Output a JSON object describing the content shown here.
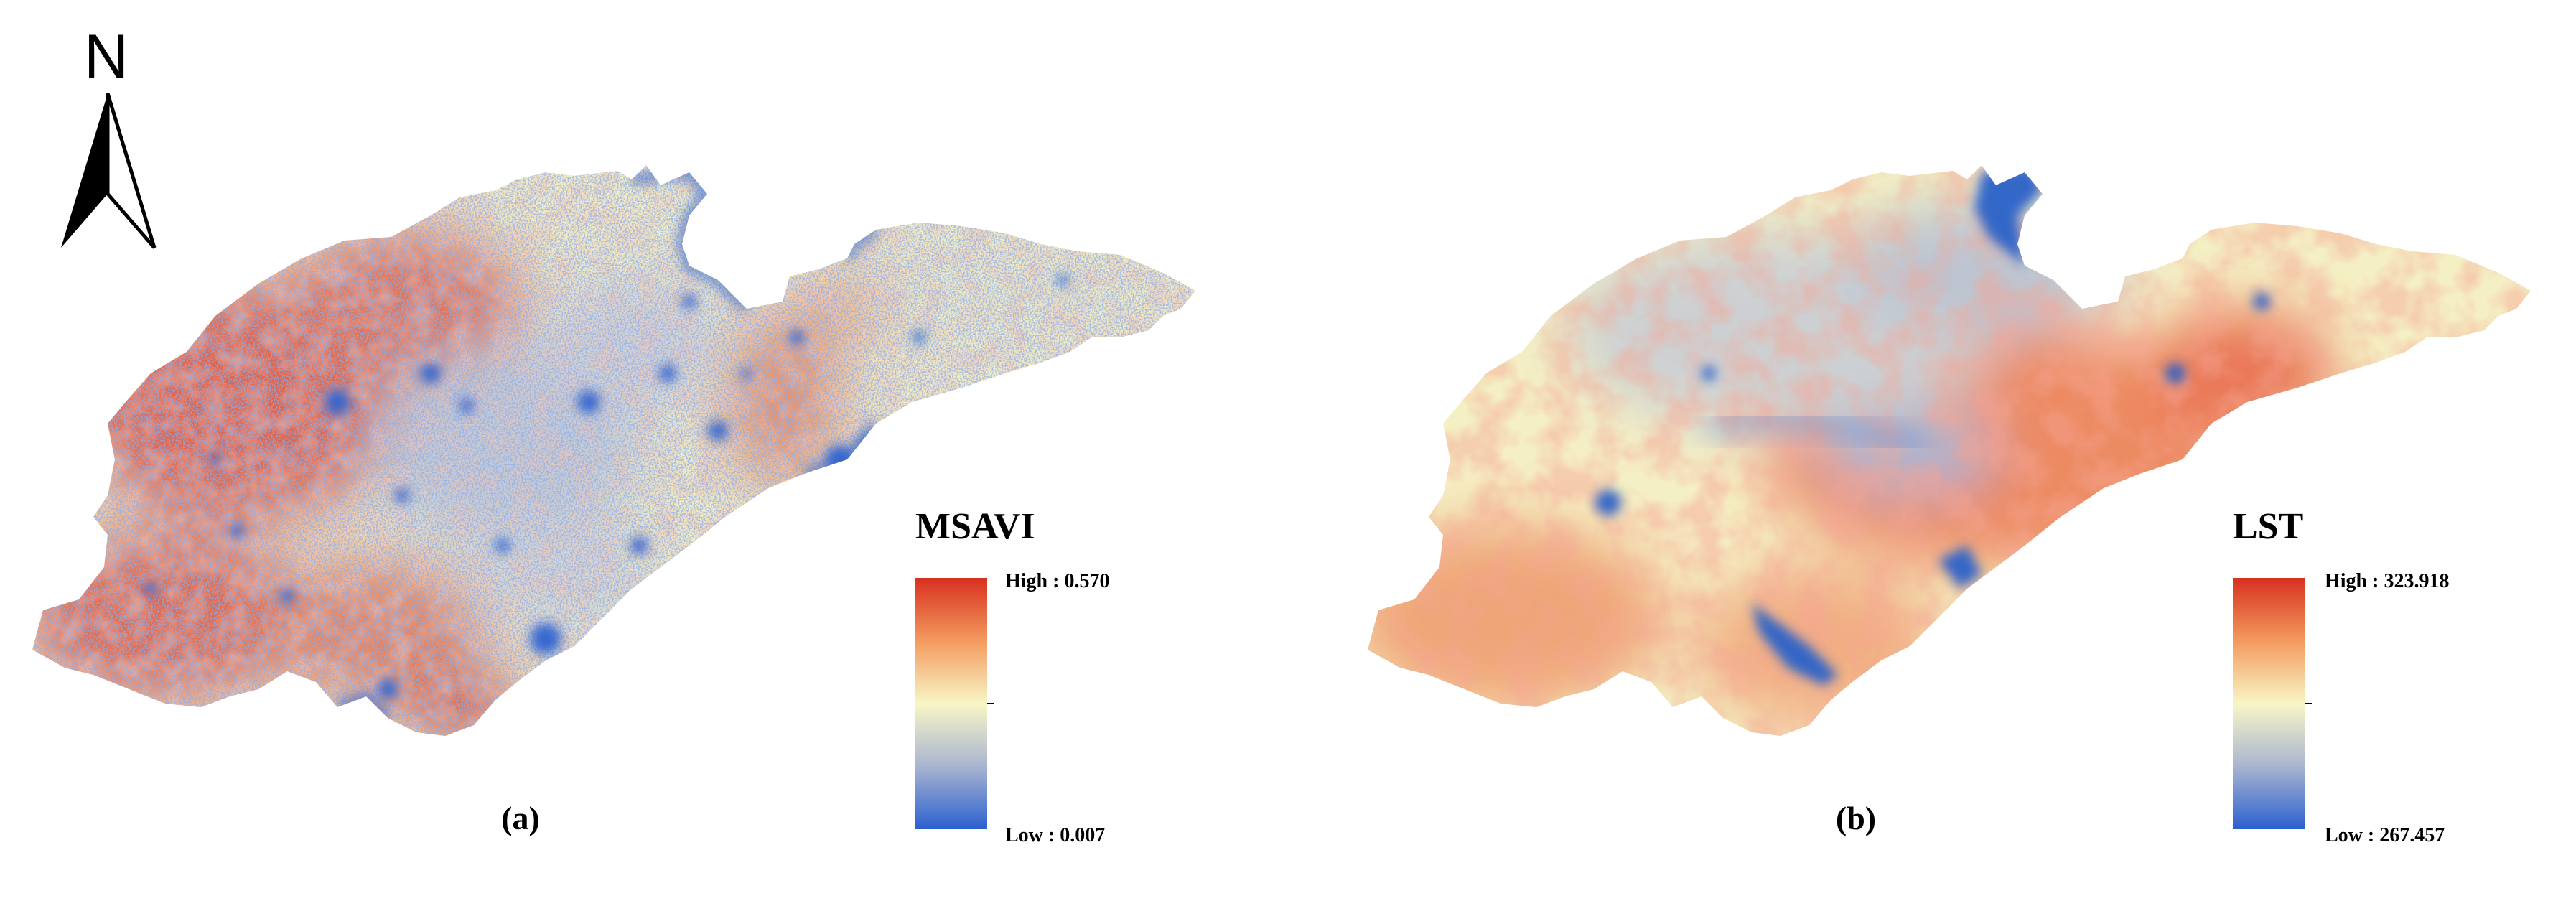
{
  "north_arrow": {
    "label": "N"
  },
  "panels": [
    {
      "id": "a",
      "caption": "(a)",
      "legend": {
        "title": "MSAVI",
        "high_label": "High : 0.570",
        "low_label": "Low : 0.007",
        "high": 0.57,
        "low": 0.007
      },
      "style": "msavi"
    },
    {
      "id": "b",
      "caption": "(b)",
      "legend": {
        "title": "LST",
        "high_label": "High : 323.918",
        "low_label": "Low : 267.457",
        "high": 323.918,
        "low": 267.457
      },
      "style": "lst"
    }
  ],
  "colors": {
    "high": "#d7301f",
    "mid_high": "#f6b26b",
    "mid": "#f7f4c2",
    "mid_low": "#a9b8d6",
    "low": "#2b5fcf"
  }
}
